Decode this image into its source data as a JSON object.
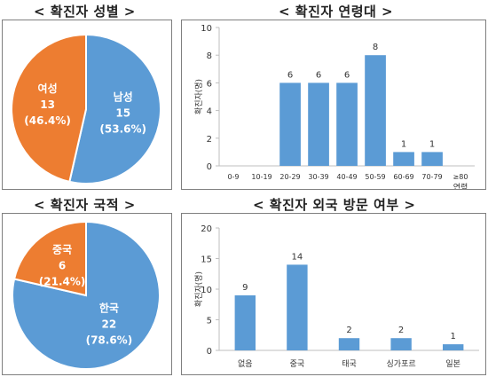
{
  "panels": {
    "gender_title": "< 확진자 성별 >",
    "age_title": "< 확진자 연령대 >",
    "nationality_title": "< 확진자 국적 >",
    "travel_title": "< 확진자 외국 방문 여부 >"
  },
  "colors": {
    "blue": "#5B9BD5",
    "orange": "#ED7D31",
    "axis": "#bfbfbf"
  },
  "chart_data": [
    {
      "type": "pie",
      "id": "gender",
      "slices": [
        {
          "label": "남성",
          "value": 15,
          "percent": "(53.6%)",
          "color": "#5B9BD5"
        },
        {
          "label": "여성",
          "value": 13,
          "percent": "(46.4%)",
          "color": "#ED7D31"
        }
      ]
    },
    {
      "type": "bar",
      "id": "age",
      "categories": [
        "0-9",
        "10-19",
        "20-29",
        "30-39",
        "40-49",
        "50-59",
        "60-69",
        "70-79",
        "≥80"
      ],
      "values": [
        0,
        0,
        6,
        6,
        6,
        8,
        1,
        1,
        0
      ],
      "data_labels": [
        "",
        "",
        "6",
        "6",
        "6",
        "8",
        "1",
        "1",
        ""
      ],
      "ylabel": "확진자(명)",
      "xlabel": "연령",
      "ylim": [
        0,
        10
      ],
      "yticks": [
        "0",
        "2",
        "4",
        "6",
        "8",
        "10"
      ],
      "grid": false
    },
    {
      "type": "pie",
      "id": "nationality",
      "slices": [
        {
          "label": "한국",
          "value": 22,
          "percent": "(78.6%)",
          "color": "#5B9BD5"
        },
        {
          "label": "중국",
          "value": 6,
          "percent": "(21.4%)",
          "color": "#ED7D31"
        }
      ]
    },
    {
      "type": "bar",
      "id": "travel",
      "categories": [
        "없음",
        "중국",
        "태국",
        "싱가포르",
        "일본"
      ],
      "values": [
        9,
        14,
        2,
        2,
        1
      ],
      "data_labels": [
        "9",
        "14",
        "2",
        "2",
        "1"
      ],
      "ylabel": "확진자(명)",
      "ylim": [
        0,
        20
      ],
      "yticks": [
        "0",
        "5",
        "10",
        "15",
        "20"
      ],
      "grid": false
    }
  ]
}
